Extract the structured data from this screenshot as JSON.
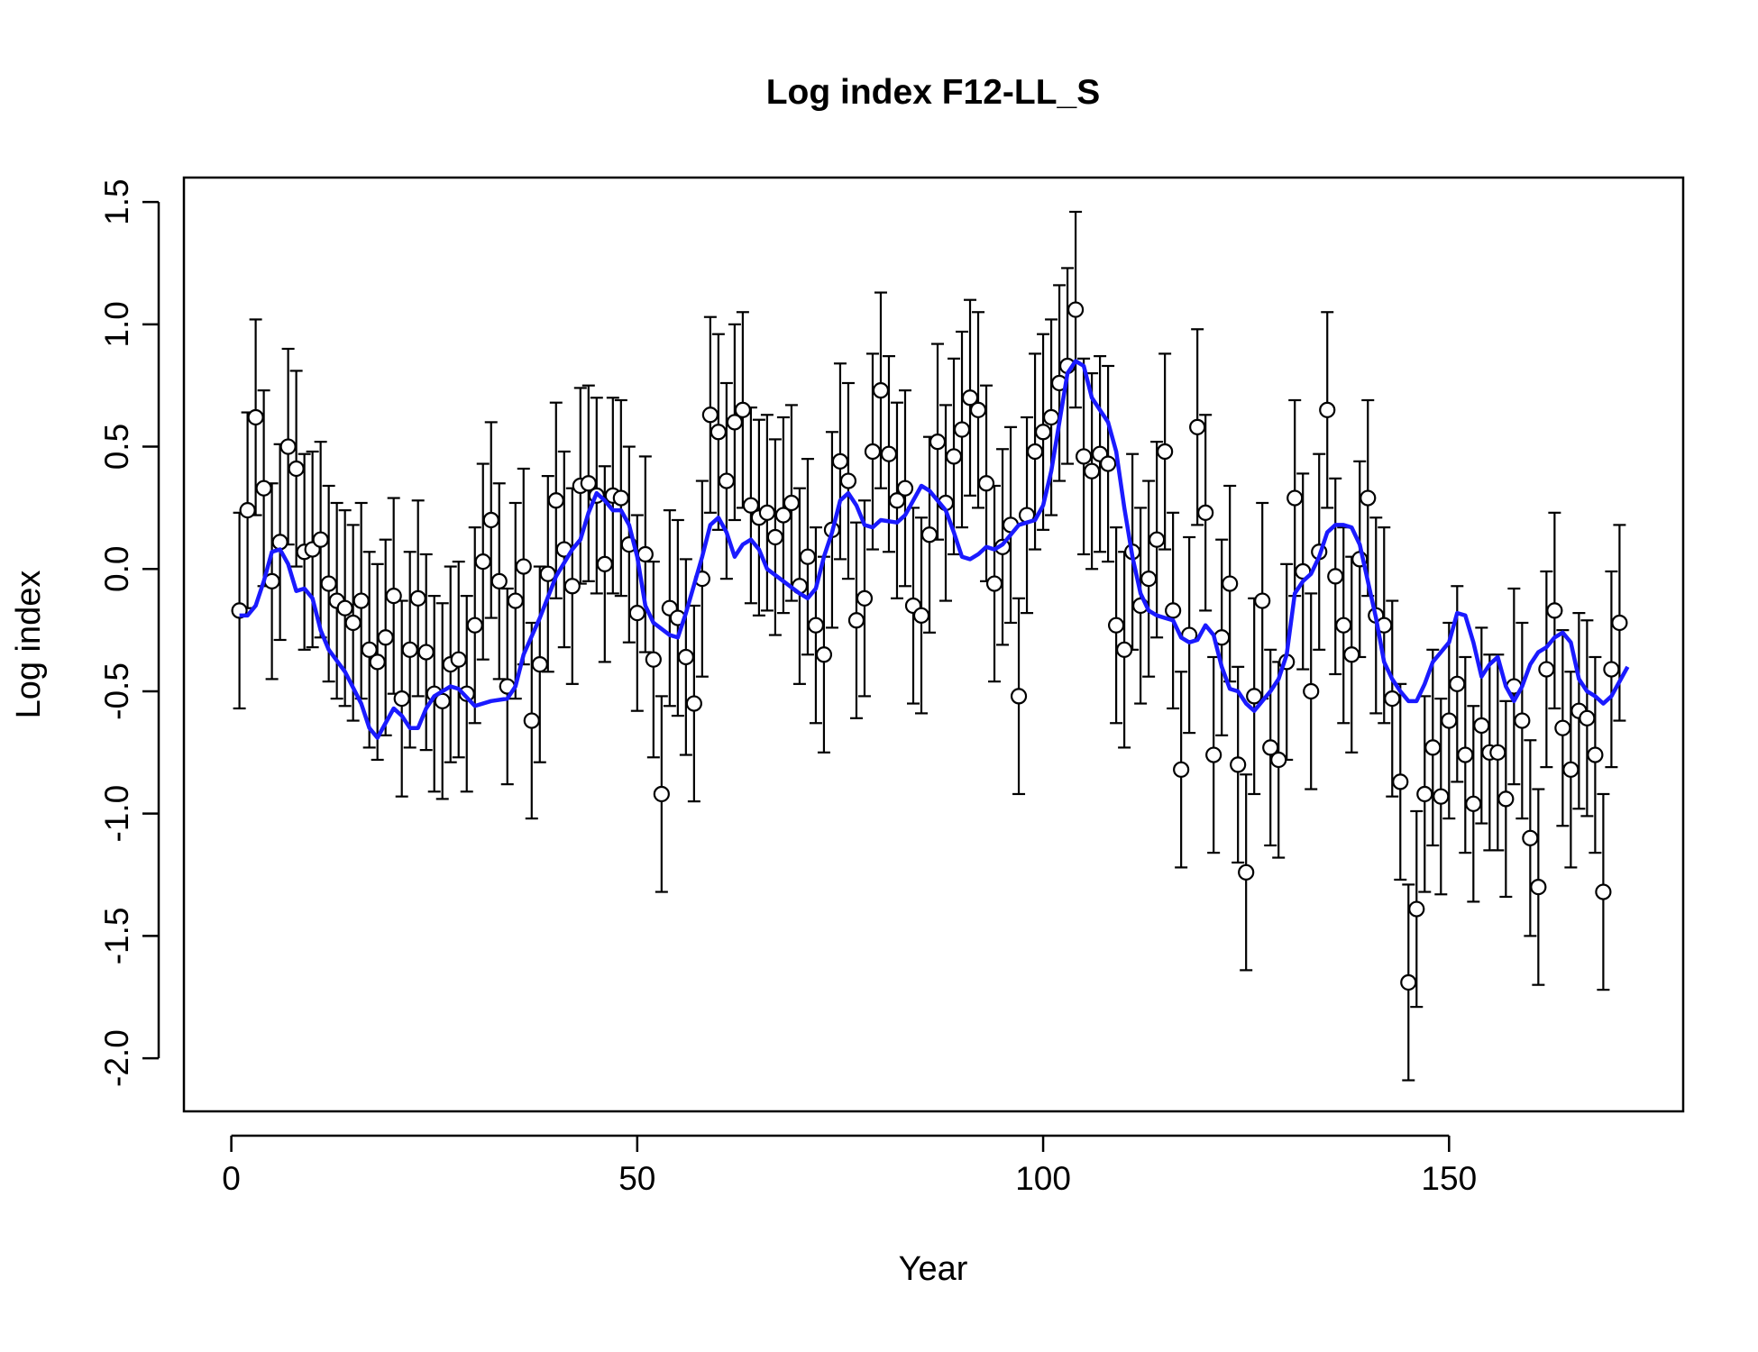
{
  "chart_data": {
    "type": "scatter",
    "title": "Log index F12-LL_S",
    "xlabel": "Year",
    "ylabel": "Log index",
    "xlim": [
      -5.84,
      178.84
    ],
    "ylim": [
      -2.217,
      1.6
    ],
    "xticks": [
      0,
      50,
      100,
      150
    ],
    "yticks": [
      {
        "value": -2,
        "label": "-2.0"
      },
      -1.5,
      {
        "value": -1,
        "label": "-1.0"
      },
      -0.5,
      {
        "value": 0,
        "label": "0.0"
      },
      0.5,
      {
        "value": 1,
        "label": "1.0"
      },
      1.5
    ],
    "series": [
      {
        "type": "scatter",
        "color": "#000000",
        "error": 0.4,
        "x": [
          1,
          2,
          3,
          4,
          5,
          6,
          7,
          8,
          9,
          10,
          11,
          12,
          13,
          14,
          15,
          16,
          17,
          18,
          19,
          20,
          21,
          22,
          23,
          24,
          25,
          26,
          27,
          28,
          29,
          30,
          31,
          32,
          33,
          34,
          35,
          36,
          37,
          38,
          39,
          40,
          41,
          42,
          43,
          44,
          45,
          46,
          47,
          48,
          49,
          50,
          51,
          52,
          53,
          54,
          55,
          56,
          57,
          58,
          59,
          60,
          61,
          62,
          63,
          64,
          65,
          66,
          67,
          68,
          69,
          70,
          71,
          72,
          73,
          74,
          75,
          76,
          77,
          78,
          79,
          80,
          81,
          82,
          83,
          84,
          85,
          86,
          87,
          88,
          89,
          90,
          91,
          92,
          93,
          94,
          95,
          96,
          97,
          98,
          99,
          100,
          101,
          102,
          103,
          104,
          105,
          106,
          107,
          108,
          109,
          110,
          111,
          112,
          113,
          114,
          115,
          116,
          117,
          118,
          119,
          120,
          121,
          122,
          123,
          124,
          125,
          126,
          127,
          128,
          129,
          130,
          131,
          132,
          133,
          134,
          135,
          136,
          137,
          138,
          139,
          140,
          141,
          142,
          143,
          144,
          145,
          146,
          147,
          148,
          149,
          150,
          151,
          152,
          153,
          154,
          155,
          156,
          157,
          158,
          159,
          160,
          161,
          162,
          163,
          164,
          165,
          166,
          167,
          168,
          169,
          170,
          171
        ],
        "values": [
          -0.17,
          0.24,
          0.62,
          0.33,
          -0.05,
          0.11,
          0.5,
          0.41,
          0.07,
          0.08,
          0.12,
          -0.06,
          -0.13,
          -0.16,
          -0.22,
          -0.13,
          -0.33,
          -0.38,
          -0.28,
          -0.11,
          -0.53,
          -0.33,
          -0.12,
          -0.34,
          -0.51,
          -0.54,
          -0.39,
          -0.37,
          -0.51,
          -0.23,
          0.03,
          0.2,
          -0.05,
          -0.48,
          -0.13,
          0.01,
          -0.62,
          -0.39,
          -0.02,
          0.28,
          0.08,
          -0.07,
          0.34,
          0.35,
          0.3,
          0.02,
          0.3,
          0.29,
          0.1,
          -0.18,
          0.06,
          -0.37,
          -0.92,
          -0.16,
          -0.2,
          -0.36,
          -0.55,
          -0.04,
          0.63,
          0.56,
          0.36,
          0.6,
          0.65,
          0.26,
          0.21,
          0.23,
          0.13,
          0.22,
          0.27,
          -0.07,
          0.05,
          -0.23,
          -0.35,
          0.16,
          0.44,
          0.36,
          -0.21,
          -0.12,
          0.48,
          0.73,
          0.47,
          0.28,
          0.33,
          -0.15,
          -0.19,
          0.14,
          0.52,
          0.27,
          0.46,
          0.57,
          0.7,
          0.65,
          0.35,
          -0.06,
          0.09,
          0.18,
          -0.52,
          0.22,
          0.48,
          0.56,
          0.62,
          0.76,
          0.83,
          1.06,
          0.46,
          0.4,
          0.47,
          0.43,
          -0.23,
          -0.33,
          0.07,
          -0.15,
          -0.04,
          0.12,
          0.48,
          -0.17,
          -0.82,
          -0.27,
          0.58,
          0.23,
          -0.76,
          -0.28,
          -0.06,
          -0.8,
          -1.24,
          -0.52,
          -0.13,
          -0.73,
          -0.78,
          -0.38,
          0.29,
          -0.01,
          -0.5,
          0.07,
          0.65,
          -0.03,
          -0.23,
          -0.35,
          0.04,
          0.29,
          -0.19,
          -0.23,
          -0.53,
          -0.87,
          -1.69,
          -1.39,
          -0.92,
          -0.73,
          -0.93,
          -0.62,
          -0.47,
          -0.76,
          -0.96,
          -0.64,
          -0.75,
          -0.75,
          -0.94,
          -0.48,
          -0.62,
          -1.1,
          -1.3,
          -0.41,
          -0.17,
          -0.65,
          -0.82,
          -0.58,
          -0.61,
          -0.76,
          -1.32,
          -0.41,
          -0.22
        ]
      },
      {
        "type": "line",
        "color": "#1a1aff",
        "x": [
          1,
          2,
          3,
          4,
          5,
          6,
          7,
          8,
          9,
          10,
          11,
          12,
          14,
          16,
          17,
          18,
          19,
          20,
          21,
          22,
          23,
          24,
          25,
          26,
          27,
          28,
          30,
          32,
          34,
          35,
          36,
          38,
          40,
          42,
          43,
          44,
          45,
          46,
          47,
          48,
          49,
          50,
          51,
          52,
          54,
          55,
          56,
          58,
          59,
          60,
          61,
          62,
          63,
          64,
          65,
          66,
          68,
          70,
          71,
          72,
          73,
          74,
          75,
          76,
          77,
          78,
          79,
          80,
          82,
          83,
          84,
          85,
          86,
          87,
          88,
          89,
          90,
          91,
          92,
          93,
          94,
          95,
          96,
          97,
          98,
          99,
          100,
          101,
          102,
          103,
          104,
          105,
          106,
          107,
          108,
          109,
          110,
          111,
          112,
          113,
          114,
          115,
          116,
          117,
          118,
          119,
          120,
          121,
          122,
          123,
          124,
          125,
          126,
          127,
          128,
          129,
          130,
          131,
          132,
          133,
          134,
          135,
          136,
          137,
          138,
          139,
          140,
          141,
          142,
          143,
          144,
          145,
          146,
          147,
          148,
          149,
          150,
          151,
          152,
          153,
          154,
          155,
          156,
          157,
          158,
          159,
          160,
          161,
          162,
          163,
          164,
          165,
          166,
          167,
          168,
          169,
          170,
          171,
          172
        ],
        "values": [
          -0.19,
          -0.19,
          -0.15,
          -0.05,
          0.07,
          0.08,
          0.02,
          -0.09,
          -0.08,
          -0.12,
          -0.25,
          -0.33,
          -0.42,
          -0.55,
          -0.65,
          -0.69,
          -0.63,
          -0.57,
          -0.6,
          -0.65,
          -0.65,
          -0.57,
          -0.52,
          -0.5,
          -0.48,
          -0.49,
          -0.56,
          -0.54,
          -0.53,
          -0.48,
          -0.35,
          -0.2,
          -0.03,
          0.08,
          0.12,
          0.23,
          0.31,
          0.28,
          0.24,
          0.24,
          0.18,
          0.05,
          -0.15,
          -0.22,
          -0.27,
          -0.28,
          -0.18,
          0.05,
          0.18,
          0.21,
          0.15,
          0.05,
          0.1,
          0.12,
          0.08,
          0,
          -0.05,
          -0.1,
          -0.12,
          -0.08,
          0.05,
          0.15,
          0.28,
          0.31,
          0.26,
          0.18,
          0.17,
          0.2,
          0.19,
          0.22,
          0.28,
          0.34,
          0.32,
          0.28,
          0.24,
          0.15,
          0.05,
          0.04,
          0.06,
          0.09,
          0.08,
          0.1,
          0.14,
          0.18,
          0.19,
          0.2,
          0.26,
          0.4,
          0.6,
          0.8,
          0.85,
          0.83,
          0.7,
          0.65,
          0.6,
          0.48,
          0.25,
          0.05,
          -0.1,
          -0.17,
          -0.19,
          -0.2,
          -0.21,
          -0.28,
          -0.3,
          -0.29,
          -0.23,
          -0.27,
          -0.4,
          -0.49,
          -0.5,
          -0.55,
          -0.58,
          -0.54,
          -0.5,
          -0.45,
          -0.35,
          -0.1,
          -0.05,
          -0.02,
          0.05,
          0.15,
          0.18,
          0.18,
          0.17,
          0.1,
          -0.05,
          -0.2,
          -0.38,
          -0.45,
          -0.5,
          -0.54,
          -0.54,
          -0.47,
          -0.38,
          -0.34,
          -0.3,
          -0.18,
          -0.19,
          -0.3,
          -0.44,
          -0.39,
          -0.36,
          -0.48,
          -0.54,
          -0.48,
          -0.39,
          -0.34,
          -0.32,
          -0.28,
          -0.26,
          -0.3,
          -0.45,
          -0.5,
          -0.52,
          -0.55,
          -0.52,
          -0.46,
          -0.4
        ]
      }
    ]
  }
}
